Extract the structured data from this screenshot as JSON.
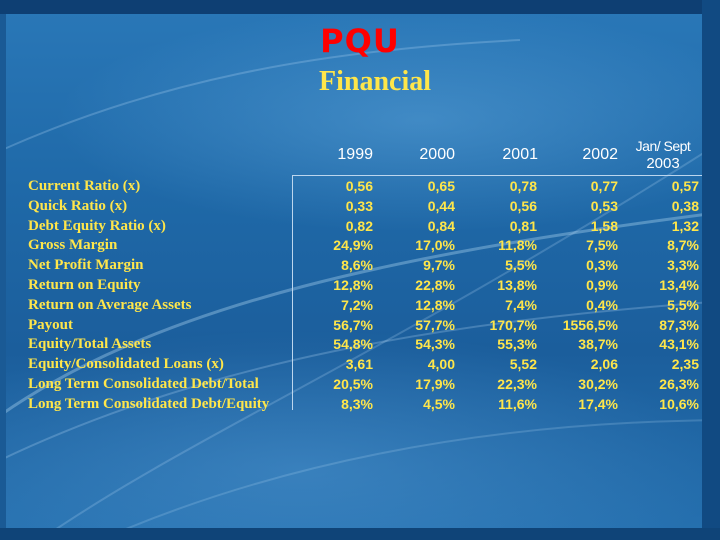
{
  "slide": {
    "title": "PQU",
    "subtitle": "Financial"
  },
  "colors": {
    "title": "#ff0000",
    "text": "#ffe64a",
    "header": "#ffffff",
    "background": "#1f69a8"
  },
  "table": {
    "columns": [
      "1999",
      "2000",
      "2001",
      "2002"
    ],
    "last_column": {
      "line1": "Jan/ Sept",
      "line2": "2003"
    },
    "rows": [
      {
        "label": "Current Ratio  (x)",
        "values": [
          "0,56",
          "0,65",
          "0,78",
          "0,77",
          "0,57"
        ]
      },
      {
        "label": "Quick Ratio   (x)",
        "values": [
          "0,33",
          "0,44",
          "0,56",
          "0,53",
          "0,38"
        ]
      },
      {
        "label": "Debt Equity Ratio (x)",
        "values": [
          "0,82",
          "0,84",
          "0,81",
          "1,58",
          "1,32"
        ]
      },
      {
        "label": "Gross Margin",
        "values": [
          "24,9%",
          "17,0%",
          "11,8%",
          "7,5%",
          "8,7%"
        ]
      },
      {
        "label": "Net Profit Margin",
        "values": [
          "8,6%",
          "9,7%",
          "5,5%",
          "0,3%",
          "3,3%"
        ]
      },
      {
        "label": "Return on Equity",
        "values": [
          "12,8%",
          "22,8%",
          "13,8%",
          "0,9%",
          "13,4%"
        ]
      },
      {
        "label": "Return on Average Assets",
        "values": [
          "7,2%",
          "12,8%",
          "7,4%",
          "0,4%",
          "5,5%"
        ]
      },
      {
        "label": "Payout",
        "values": [
          "56,7%",
          "57,7%",
          "170,7%",
          "1556,5%",
          "87,3%"
        ]
      },
      {
        "label": "Equity/Total Assets",
        "values": [
          "54,8%",
          "54,3%",
          "55,3%",
          "38,7%",
          "43,1%"
        ]
      },
      {
        "label": "Equity/Consolidated Loans  (x)",
        "values": [
          "3,61",
          "4,00",
          "5,52",
          "2,06",
          "2,35"
        ]
      },
      {
        "label": "Long Term Consolidated Debt/Total",
        "values": [
          "20,5%",
          "17,9%",
          "22,3%",
          "30,2%",
          "26,3%"
        ]
      },
      {
        "label": "Long Term Consolidated Debt/Equity",
        "values": [
          "8,3%",
          "4,5%",
          "11,6%",
          "17,4%",
          "10,6%"
        ]
      }
    ]
  }
}
